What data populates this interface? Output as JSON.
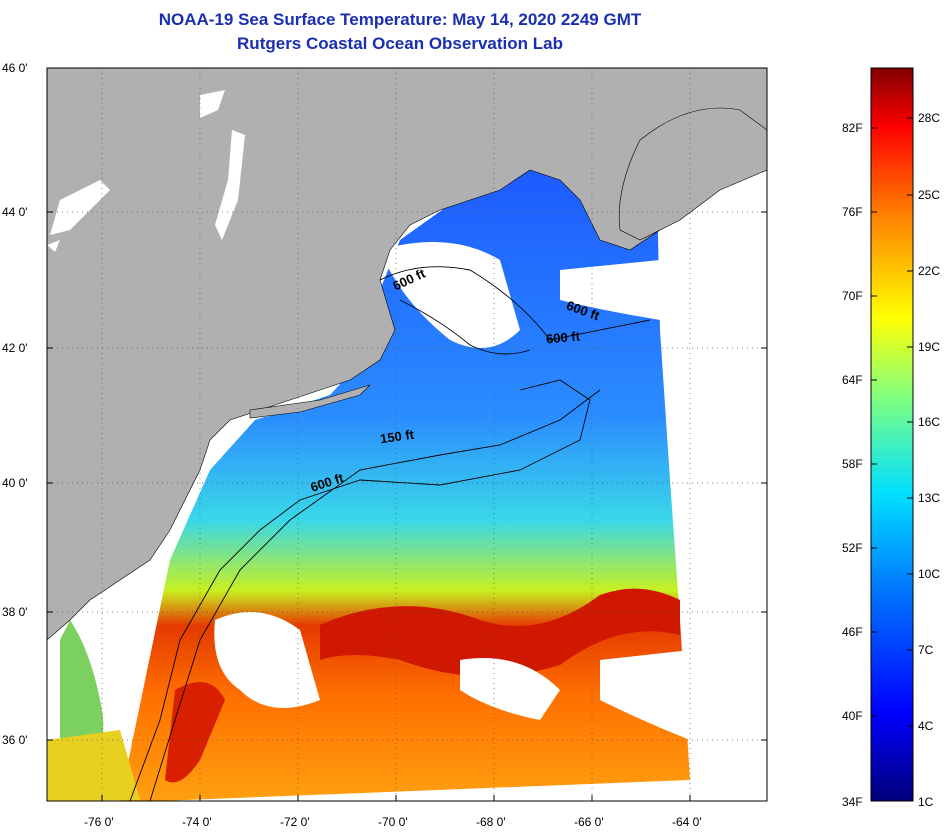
{
  "title": {
    "line1": "NOAA-19 Sea Surface Temperature:  May 14, 2020 2249 GMT",
    "line2": "Rutgers Coastal Ocean Observation Lab"
  },
  "map": {
    "lat_labels": [
      "46 0'",
      "44 0'",
      "42 0'",
      "40 0'",
      "38 0'",
      "36 0'"
    ],
    "lon_labels": [
      "-76 0'",
      "-74 0'",
      "-72 0'",
      "-70 0'",
      "-68 0'",
      "-66 0'",
      "-64 0'"
    ],
    "contour_labels": [
      "600 ft",
      "600 ft",
      "600 ft",
      "150 ft",
      "600 ft"
    ],
    "colors": {
      "land": "#b0b0b0",
      "cloud": "#ffffff"
    }
  },
  "colorbar": {
    "fahrenheit_labels": [
      "82F",
      "76F",
      "70F",
      "64F",
      "58F",
      "52F",
      "46F",
      "40F",
      "34F"
    ],
    "celsius_labels": [
      "28C",
      "25C",
      "22C",
      "19C",
      "16C",
      "13C",
      "10C",
      "7C",
      "4C",
      "1C"
    ]
  }
}
